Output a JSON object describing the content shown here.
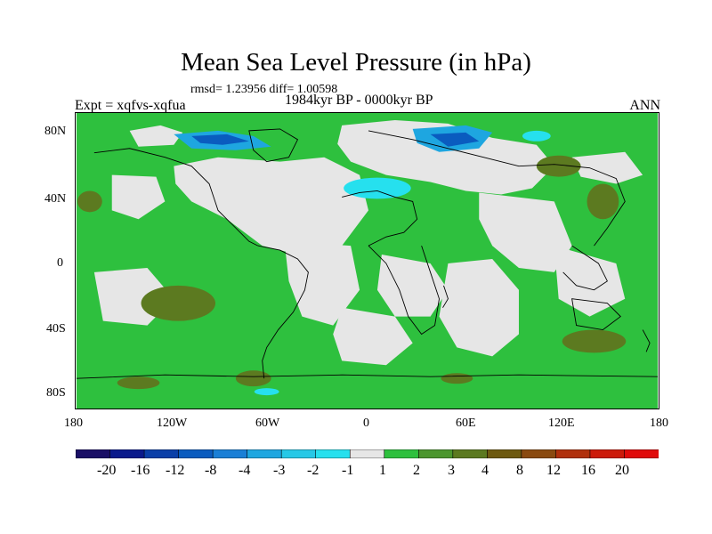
{
  "title": "Mean Sea Level Pressure (in hPa)",
  "stats": "rmsd= 1.23956 diff= 1.00598",
  "experiment": "Expt = xqfvs-xqfua",
  "period": "1984kyr BP - 0000kyr BP",
  "season": "ANN",
  "lat_ticks": [
    "80N",
    "40N",
    "0",
    "40S",
    "80S"
  ],
  "lon_ticks": [
    "180",
    "120W",
    "60W",
    "0",
    "60E",
    "120E",
    "180"
  ],
  "colorbar": {
    "labels": [
      "-20",
      "-16",
      "-12",
      "-8",
      "-4",
      "-3",
      "-2",
      "-1",
      "1",
      "2",
      "3",
      "4",
      "8",
      "12",
      "16",
      "20"
    ],
    "colors": [
      "#1a0f66",
      "#0a1a8c",
      "#0a3fa8",
      "#0a5cbf",
      "#1a7fd6",
      "#1ea6e0",
      "#26c8e6",
      "#26e0ee",
      "#e6e6e6",
      "#2ec03e",
      "#4c962e",
      "#5c7a20",
      "#6e5a10",
      "#8a4a10",
      "#b0300c",
      "#cc1a0a",
      "#e00a0a"
    ]
  },
  "colors": {
    "neutral": "#e6e6e6",
    "positive_1_2": "#2ec03e",
    "positive_3_4": "#5c7a20",
    "negative_2_4": "#1ea6e0",
    "negative_1_2": "#26e0ee"
  }
}
